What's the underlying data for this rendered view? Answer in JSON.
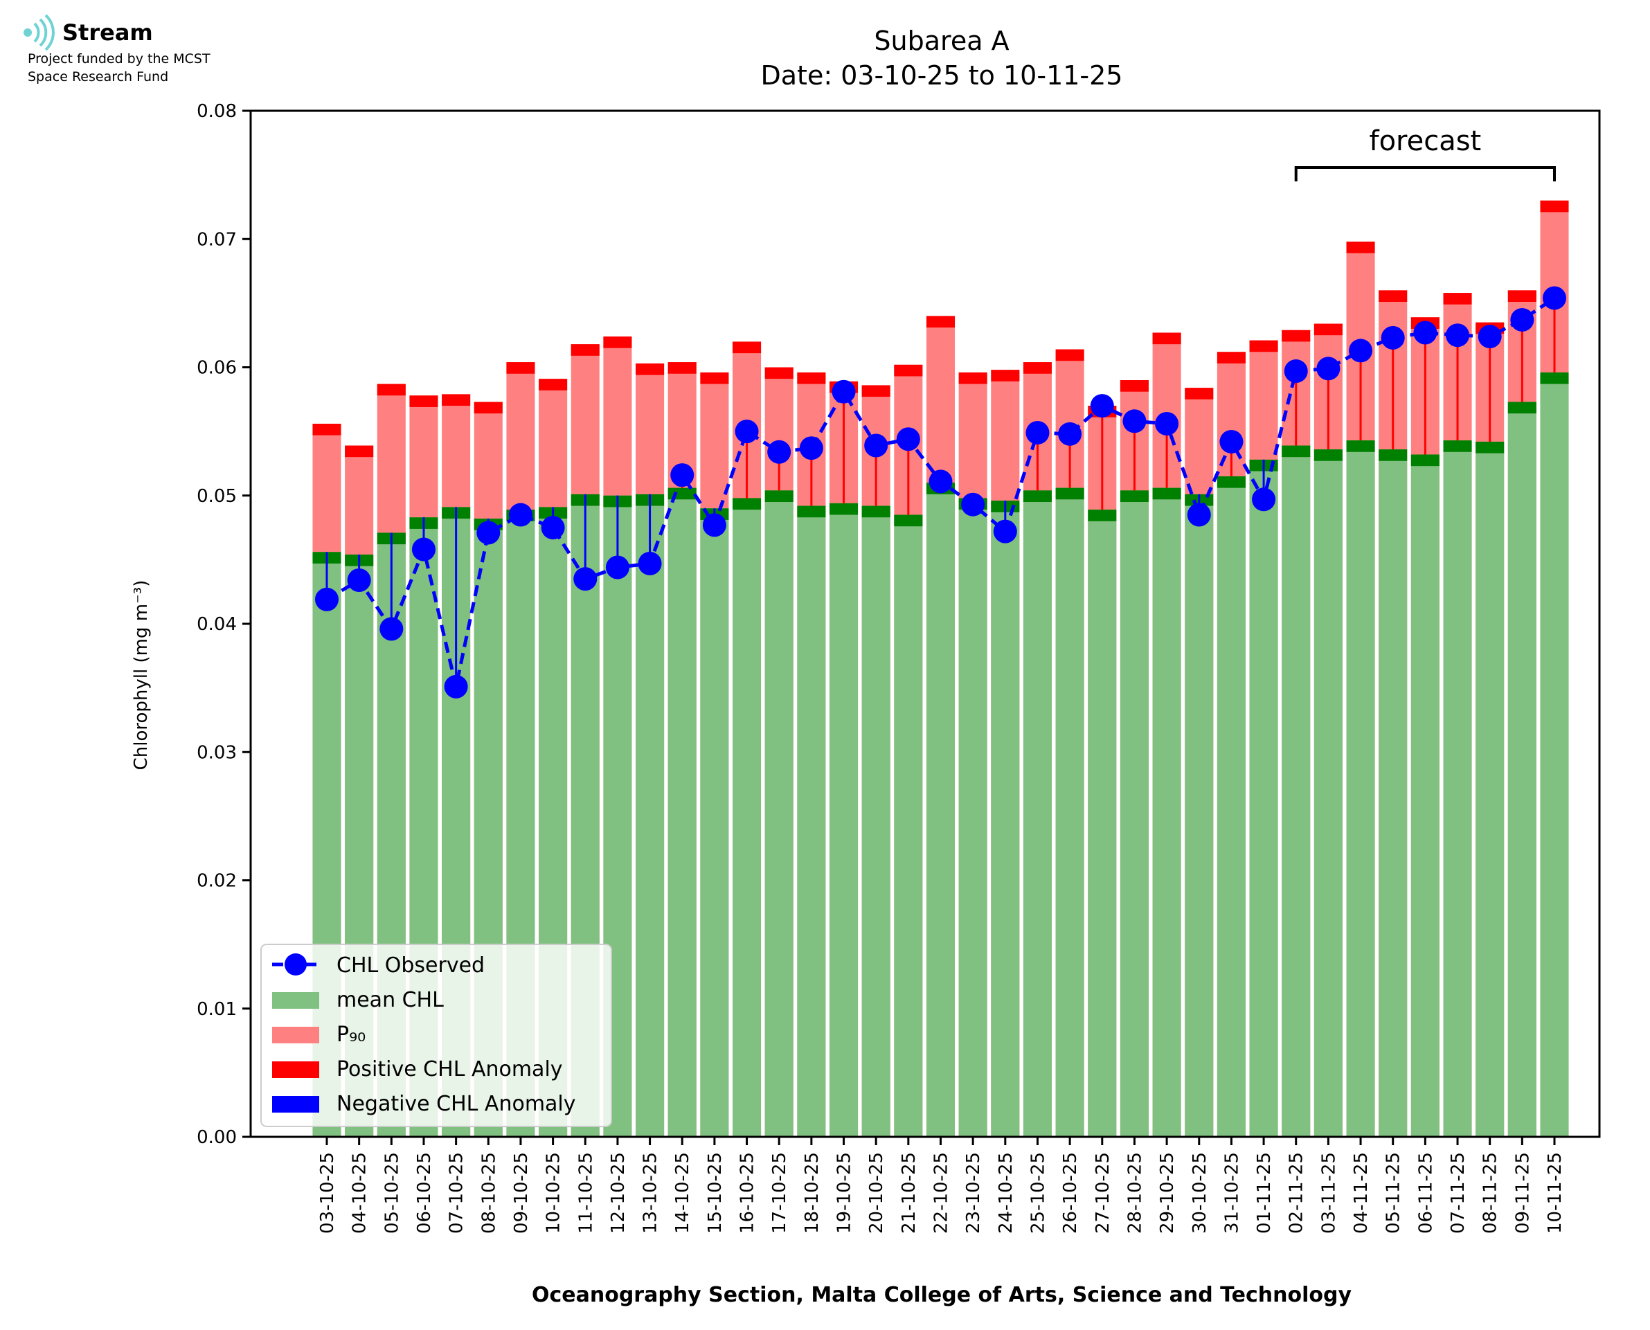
{
  "logo": {
    "name": "Stream",
    "tagline_line1": "Project funded by the MCST",
    "tagline_line2": "Space Research Fund"
  },
  "footer": "Oceanography Section, Malta College of Arts, Science and Technology",
  "colors": {
    "mean": "#80c080",
    "mean_cap": "#008000",
    "p90": "#ff8080",
    "pos_anomaly": "#ff0000",
    "neg_anomaly": "#0000ff",
    "observed": "#0000ff"
  },
  "chart_data": {
    "type": "bar",
    "title": "Subarea A",
    "subtitle": "Date: 03-10-25 to 10-11-25",
    "ylabel": "Chlorophyll (mg m⁻³)",
    "xlabel": "",
    "ylim": [
      0,
      0.08
    ],
    "yticks": [
      "0.00",
      "0.01",
      "0.02",
      "0.03",
      "0.04",
      "0.05",
      "0.06",
      "0.07",
      "0.08"
    ],
    "grid": false,
    "legend_position": "bottom-left",
    "legend": [
      "CHL Observed",
      "mean CHL",
      "P₉₀",
      "Positive CHL Anomaly",
      "Negative CHL Anomaly"
    ],
    "annotation": "forecast",
    "forecast_range": [
      "02-11-25",
      "10-11-25"
    ],
    "categories": [
      "03-10-25",
      "04-10-25",
      "05-10-25",
      "06-10-25",
      "07-10-25",
      "08-10-25",
      "09-10-25",
      "10-10-25",
      "11-10-25",
      "12-10-25",
      "13-10-25",
      "14-10-25",
      "15-10-25",
      "16-10-25",
      "17-10-25",
      "18-10-25",
      "19-10-25",
      "20-10-25",
      "21-10-25",
      "22-10-25",
      "23-10-25",
      "24-10-25",
      "25-10-25",
      "26-10-25",
      "27-10-25",
      "28-10-25",
      "29-10-25",
      "30-10-25",
      "31-10-25",
      "01-11-25",
      "02-11-25",
      "03-11-25",
      "04-11-25",
      "05-11-25",
      "06-11-25",
      "07-11-25",
      "08-11-25",
      "09-11-25",
      "10-11-25"
    ],
    "series": [
      {
        "name": "mean CHL",
        "values": [
          0.0456,
          0.0454,
          0.0471,
          0.0483,
          0.0491,
          0.0482,
          0.0489,
          0.0491,
          0.0501,
          0.05,
          0.0501,
          0.0506,
          0.049,
          0.0498,
          0.0504,
          0.0492,
          0.0494,
          0.0492,
          0.0485,
          0.051,
          0.0498,
          0.0496,
          0.0504,
          0.0506,
          0.0489,
          0.0504,
          0.0506,
          0.0501,
          0.0515,
          0.0528,
          0.0539,
          0.0536,
          0.0543,
          0.0536,
          0.0532,
          0.0543,
          0.0542,
          0.0573,
          0.0596
        ]
      },
      {
        "name": "P₉₀",
        "values": [
          0.0556,
          0.0539,
          0.0587,
          0.0578,
          0.0579,
          0.0573,
          0.0604,
          0.0591,
          0.0618,
          0.0624,
          0.0603,
          0.0604,
          0.0596,
          0.062,
          0.06,
          0.0596,
          0.0589,
          0.0586,
          0.0602,
          0.064,
          0.0596,
          0.0598,
          0.0604,
          0.0614,
          0.057,
          0.059,
          0.0627,
          0.0584,
          0.0612,
          0.0621,
          0.0629,
          0.0634,
          0.0698,
          0.066,
          0.0639,
          0.0658,
          0.0635,
          0.066,
          0.073
        ]
      },
      {
        "name": "CHL Observed",
        "values": [
          0.0419,
          0.0434,
          0.0396,
          0.0458,
          0.0351,
          0.0471,
          0.0485,
          0.0475,
          0.0435,
          0.0444,
          0.0447,
          0.0516,
          0.0477,
          0.055,
          0.0534,
          0.0537,
          0.0581,
          0.0539,
          0.0544,
          0.0511,
          0.0493,
          0.0472,
          0.0549,
          0.0548,
          0.057,
          0.0558,
          0.0556,
          0.0485,
          0.0542,
          0.0497,
          0.0597,
          0.0599,
          0.0613,
          0.0623,
          0.0627,
          0.0625,
          0.0624,
          0.0637,
          0.0654
        ]
      }
    ]
  }
}
